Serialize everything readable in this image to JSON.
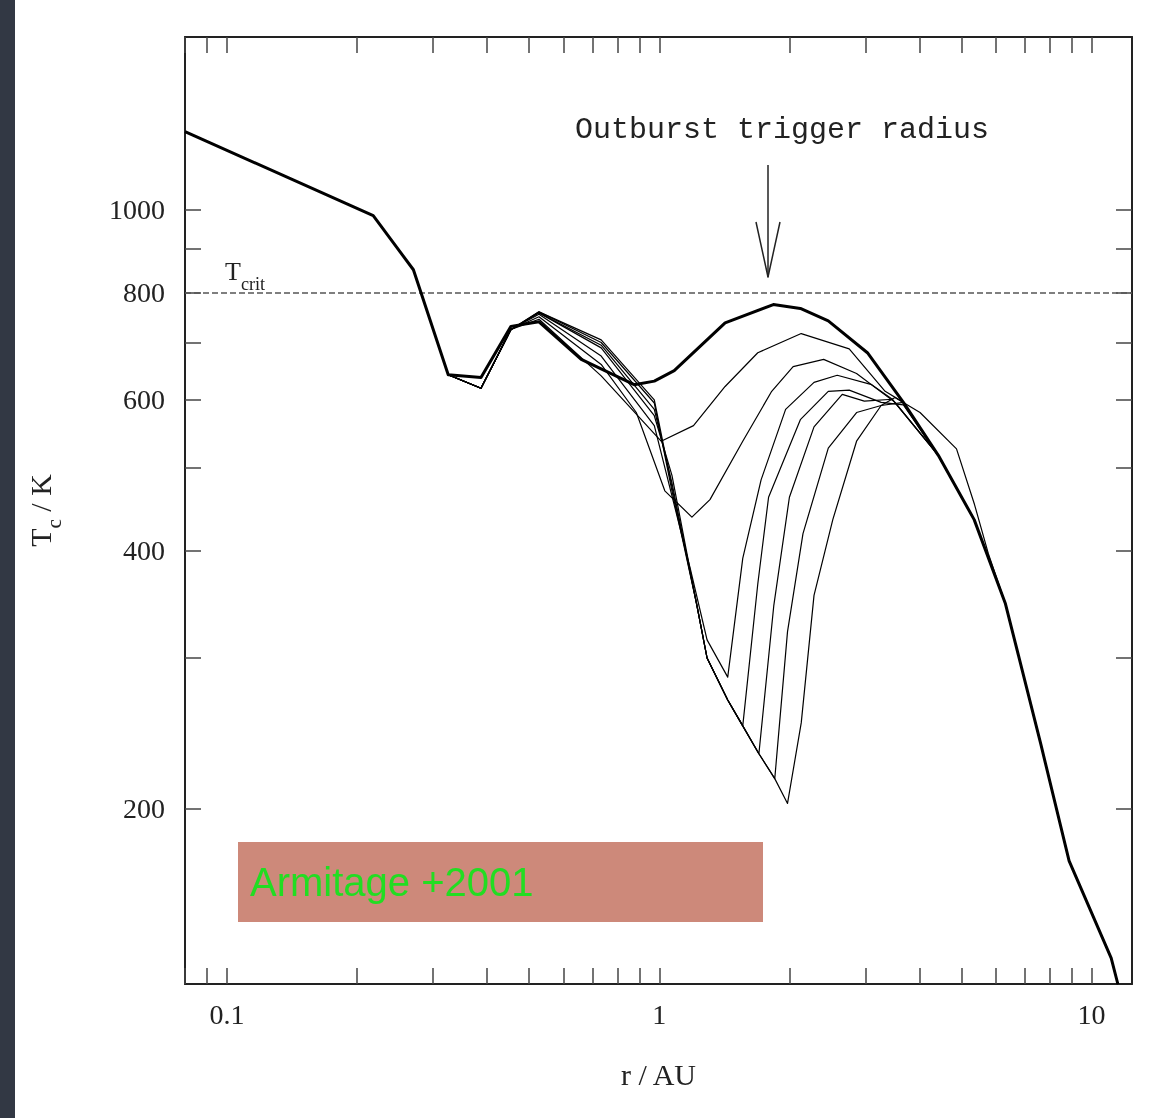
{
  "chart_data": {
    "type": "line",
    "xlabel": "r / AU",
    "ylabel": "T$_{c}$ / K",
    "log": "xy",
    "marker": "none",
    "xlim": [
      0.08,
      12.4
    ],
    "ylim": [
      125,
      1590
    ],
    "xticks": [
      {
        "value": 0.08,
        "label": null
      },
      {
        "value": 0.09,
        "label": null
      },
      0.1,
      {
        "value": 0.2,
        "label": null
      },
      {
        "value": 0.3,
        "label": null
      },
      {
        "value": 0.4,
        "label": null
      },
      {
        "value": 0.5,
        "label": null
      },
      {
        "value": 0.6,
        "label": null
      },
      {
        "value": 0.7,
        "label": null
      },
      {
        "value": 0.8,
        "label": null
      },
      {
        "value": 0.9,
        "label": null
      },
      1,
      {
        "value": 2,
        "label": null
      },
      {
        "value": 3,
        "label": null
      },
      {
        "value": 4,
        "label": null
      },
      {
        "value": 5,
        "label": null
      },
      {
        "value": 6,
        "label": null
      },
      {
        "value": 7,
        "label": null
      },
      {
        "value": 8,
        "label": null
      },
      {
        "value": 9,
        "label": null
      },
      10
    ],
    "yticks": [
      200,
      {
        "value": 300,
        "label": null
      },
      400,
      {
        "value": 500,
        "label": null
      },
      600,
      {
        "value": 700,
        "label": null
      },
      800,
      {
        "value": 900,
        "label": null
      },
      1000
    ],
    "ref_lines": [
      {
        "axis": "y",
        "value": 800,
        "label": "T$_{crit}$",
        "color": "#555555",
        "line_style": "dashed"
      }
    ],
    "annotations": [
      "Outburst trigger radius",
      "Armitage +2001"
    ],
    "series": [
      {
        "color": "#000000",
        "x": [
          0.08,
          0.218,
          0.27,
          0.325,
          0.387,
          0.454,
          0.527,
          0.66,
          0.875,
          0.974,
          1.083,
          1.42,
          1.836,
          2.12,
          2.46,
          3.03,
          3.67,
          4.42,
          5.35,
          6.32,
          7.63,
          8.87,
          11.1,
          11.5
        ],
        "values": [
          1233,
          984,
          851,
          642,
          637,
          731,
          740,
          669,
          625,
          631,
          649,
          738,
          775,
          767,
          742,
          681,
          596,
          517,
          435,
          347,
          238,
          174,
          134,
          125
        ]
      },
      {
        "color": "#000000",
        "x": [
          0.325,
          0.387,
          0.454,
          0.527,
          0.734,
          1.01,
          1.2,
          1.42,
          1.69,
          2.13,
          2.75,
          3.33,
          3.67,
          4.42,
          5.35,
          6.32,
          7.63,
          8.87,
          11.1,
          11.5
        ],
        "values": [
          642,
          619,
          725,
          745,
          640,
          537,
          560,
          622,
          681,
          717,
          688,
          614,
          596,
          517,
          435,
          347,
          238,
          174,
          134,
          125
        ]
      },
      {
        "color": "#000000",
        "x": [
          0.325,
          0.387,
          0.454,
          0.527,
          0.734,
          0.885,
          1.03,
          1.19,
          1.31,
          1.56,
          1.82,
          2.04,
          2.4,
          2.86,
          3.51,
          4.42,
          5.35,
          6.32,
          7.63,
          8.87,
          11.1,
          11.5
        ],
        "values": [
          642,
          619,
          725,
          750,
          660,
          580,
          470,
          438,
          459,
          537,
          614,
          656,
          669,
          644,
          596,
          517,
          435,
          347,
          238,
          174,
          134,
          125
        ]
      },
      {
        "color": "#000000",
        "x": [
          0.325,
          0.387,
          0.454,
          0.527,
          0.734,
          0.974,
          1.18,
          1.29,
          1.44,
          1.56,
          1.72,
          1.96,
          2.28,
          2.58,
          3.1,
          3.46,
          4.42,
          5.35,
          6.32,
          7.63,
          8.87,
          11.1,
          11.5
        ],
        "values": [
          642,
          619,
          725,
          755,
          675,
          560,
          381,
          315,
          285,
          392,
          484,
          585,
          629,
          641,
          625,
          601,
          517,
          435,
          347,
          238,
          174,
          134,
          125
        ]
      },
      {
        "color": "#000000",
        "x": [
          0.325,
          0.387,
          0.454,
          0.527,
          0.734,
          0.974,
          1.07,
          1.22,
          1.29,
          1.44,
          1.56,
          1.69,
          1.79,
          2.12,
          2.46,
          2.75,
          3.26,
          3.67,
          4.42,
          5.35,
          6.32,
          7.63,
          8.87,
          11.1,
          11.5
        ],
        "values": [
          642,
          619,
          725,
          758,
          690,
          575,
          490,
          347,
          300,
          268,
          250,
          366,
          462,
          569,
          614,
          616,
          596,
          592,
          517,
          435,
          347,
          238,
          174,
          134,
          125
        ]
      },
      {
        "color": "#000000",
        "x": [
          0.325,
          0.387,
          0.454,
          0.527,
          0.734,
          0.974,
          1.07,
          1.22,
          1.29,
          1.44,
          1.56,
          1.7,
          1.84,
          2.0,
          2.28,
          2.65,
          2.98,
          3.46,
          4.42,
          5.35,
          6.32,
          7.63,
          8.87,
          11.1,
          11.5
        ],
        "values": [
          642,
          619,
          725,
          758,
          695,
          585,
          480,
          347,
          300,
          268,
          250,
          232,
          345,
          462,
          558,
          609,
          598,
          601,
          517,
          435,
          347,
          238,
          174,
          134,
          125
        ]
      },
      {
        "color": "#000000",
        "x": [
          0.325,
          0.387,
          0.454,
          0.527,
          0.734,
          0.974,
          1.07,
          1.22,
          1.29,
          1.44,
          1.56,
          1.7,
          1.85,
          1.98,
          2.15,
          2.46,
          2.86,
          3.26,
          3.67,
          4.42,
          5.35,
          6.32,
          7.63,
          8.87,
          11.1,
          11.5
        ],
        "values": [
          642,
          619,
          725,
          760,
          700,
          595,
          470,
          347,
          300,
          268,
          250,
          232,
          217,
          322,
          419,
          527,
          580,
          591,
          596,
          517,
          435,
          347,
          238,
          174,
          134,
          125
        ]
      },
      {
        "color": "#000000",
        "x": [
          0.325,
          0.387,
          0.454,
          0.527,
          0.734,
          0.974,
          1.07,
          1.22,
          1.29,
          1.44,
          1.56,
          1.7,
          1.85,
          1.98,
          2.13,
          2.28,
          2.52,
          2.86,
          3.26,
          3.51,
          4.01,
          4.87,
          5.36,
          5.77,
          6.32,
          7.63,
          8.87,
          11.1,
          11.5
        ],
        "values": [
          642,
          619,
          725,
          760,
          705,
          600,
          475,
          347,
          300,
          268,
          250,
          232,
          217,
          203,
          252,
          355,
          435,
          537,
          591,
          604,
          580,
          526,
          453,
          397,
          347,
          238,
          174,
          134,
          125
        ]
      }
    ]
  }
}
